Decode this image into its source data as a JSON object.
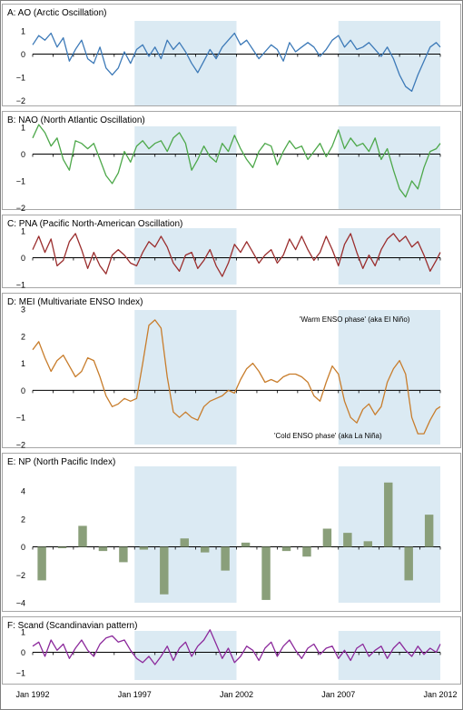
{
  "figure": {
    "x_tick_labels": [
      "Jan 1992",
      "Jan 1997",
      "Jan 2002",
      "Jan 2007",
      "Jan 2012"
    ],
    "shaded_periods": [
      [
        "1997-01",
        "2002-01"
      ],
      [
        "2007-01",
        "2012-01"
      ]
    ],
    "shade_color": "#dbeaf3",
    "frame_color": "#7f7f7f"
  },
  "chart_data": [
    {
      "type": "line",
      "title": "A: AO (Arctic Oscillation)",
      "color": "#3d7ab8",
      "ylim": [
        -2,
        1
      ],
      "yticks": [
        1,
        0,
        -1,
        -2
      ],
      "xlim": [
        "1992-01",
        "2012-01"
      ],
      "series": [
        {
          "x": [
            1992.0,
            1992.3,
            1992.6,
            1992.9,
            1993.2,
            1993.5,
            1993.8,
            1994.1,
            1994.4,
            1994.7,
            1995.0,
            1995.3,
            1995.6,
            1995.9,
            1996.2,
            1996.5,
            1996.8,
            1997.1,
            1997.4,
            1997.7,
            1998.0,
            1998.3,
            1998.6,
            1998.9,
            1999.2,
            1999.5,
            1999.8,
            2000.1,
            2000.4,
            2000.7,
            2001.0,
            2001.3,
            2001.6,
            2001.9,
            2002.2,
            2002.5,
            2002.8,
            2003.1,
            2003.4,
            2003.7,
            2004.0,
            2004.3,
            2004.6,
            2004.9,
            2005.2,
            2005.5,
            2005.8,
            2006.1,
            2006.4,
            2006.7,
            2007.0,
            2007.3,
            2007.6,
            2007.9,
            2008.2,
            2008.5,
            2008.8,
            2009.1,
            2009.4,
            2009.7,
            2010.0,
            2010.3,
            2010.6,
            2010.9,
            2011.2,
            2011.5,
            2011.8,
            2012.0
          ],
          "values": [
            0.4,
            0.8,
            0.6,
            0.9,
            0.3,
            0.7,
            -0.3,
            0.2,
            0.6,
            -0.2,
            -0.4,
            0.3,
            -0.6,
            -0.9,
            -0.6,
            0.1,
            -0.4,
            0.2,
            0.4,
            -0.1,
            0.3,
            -0.2,
            0.6,
            0.2,
            0.5,
            0.1,
            -0.4,
            -0.8,
            -0.3,
            0.2,
            -0.2,
            0.3,
            0.6,
            0.9,
            0.4,
            0.6,
            0.2,
            -0.2,
            0.1,
            0.4,
            0.2,
            -0.3,
            0.5,
            0.1,
            0.3,
            0.5,
            0.3,
            -0.1,
            0.2,
            0.6,
            0.8,
            0.3,
            0.6,
            0.2,
            0.3,
            0.5,
            0.2,
            -0.1,
            0.3,
            -0.2,
            -0.9,
            -1.4,
            -1.6,
            -0.9,
            -0.3,
            0.3,
            0.5,
            0.3
          ]
        }
      ]
    },
    {
      "type": "line",
      "title": "B: NAO (North Atlantic Oscillation)",
      "color": "#4da84a",
      "ylim": [
        -2,
        1
      ],
      "yticks": [
        1,
        0,
        -1,
        -2
      ],
      "xlim": [
        "1992-01",
        "2012-01"
      ],
      "series": [
        {
          "x": [
            1992.0,
            1992.3,
            1992.6,
            1992.9,
            1993.2,
            1993.5,
            1993.8,
            1994.1,
            1994.4,
            1994.7,
            1995.0,
            1995.3,
            1995.6,
            1995.9,
            1996.2,
            1996.5,
            1996.8,
            1997.1,
            1997.4,
            1997.7,
            1998.0,
            1998.3,
            1998.6,
            1998.9,
            1999.2,
            1999.5,
            1999.8,
            2000.1,
            2000.4,
            2000.7,
            2001.0,
            2001.3,
            2001.6,
            2001.9,
            2002.2,
            2002.5,
            2002.8,
            2003.1,
            2003.4,
            2003.7,
            2004.0,
            2004.3,
            2004.6,
            2004.9,
            2005.2,
            2005.5,
            2005.8,
            2006.1,
            2006.4,
            2006.7,
            2007.0,
            2007.3,
            2007.6,
            2007.9,
            2008.2,
            2008.5,
            2008.8,
            2009.1,
            2009.4,
            2009.7,
            2010.0,
            2010.3,
            2010.6,
            2010.9,
            2011.2,
            2011.5,
            2011.8,
            2012.0
          ],
          "values": [
            0.6,
            1.1,
            0.8,
            0.3,
            0.6,
            -0.2,
            -0.6,
            0.5,
            0.4,
            0.2,
            0.4,
            -0.2,
            -0.8,
            -1.1,
            -0.7,
            0.1,
            -0.3,
            0.3,
            0.5,
            0.2,
            0.4,
            0.5,
            0.1,
            0.6,
            0.8,
            0.4,
            -0.6,
            -0.2,
            0.3,
            -0.1,
            -0.3,
            0.4,
            0.1,
            0.7,
            0.2,
            -0.2,
            -0.5,
            0.1,
            0.4,
            0.3,
            -0.4,
            0.1,
            0.5,
            0.2,
            0.3,
            -0.2,
            0.1,
            0.4,
            -0.1,
            0.3,
            0.9,
            0.2,
            0.6,
            0.3,
            0.4,
            0.1,
            0.6,
            -0.2,
            0.2,
            -0.6,
            -1.3,
            -1.6,
            -1.0,
            -1.3,
            -0.5,
            0.1,
            0.2,
            0.4
          ]
        }
      ]
    },
    {
      "type": "line",
      "title": "C: PNA (Pacific North-American Oscillation)",
      "color": "#9b2e2e",
      "ylim": [
        -1,
        1
      ],
      "yticks": [
        1,
        0,
        -1
      ],
      "xlim": [
        "1992-01",
        "2012-01"
      ],
      "series": [
        {
          "x": [
            1992.0,
            1992.3,
            1992.6,
            1992.9,
            1993.2,
            1993.5,
            1993.8,
            1994.1,
            1994.4,
            1994.7,
            1995.0,
            1995.3,
            1995.6,
            1995.9,
            1996.2,
            1996.5,
            1996.8,
            1997.1,
            1997.4,
            1997.7,
            1998.0,
            1998.3,
            1998.6,
            1998.9,
            1999.2,
            1999.5,
            1999.8,
            2000.1,
            2000.4,
            2000.7,
            2001.0,
            2001.3,
            2001.6,
            2001.9,
            2002.2,
            2002.5,
            2002.8,
            2003.1,
            2003.4,
            2003.7,
            2004.0,
            2004.3,
            2004.6,
            2004.9,
            2005.2,
            2005.5,
            2005.8,
            2006.1,
            2006.4,
            2006.7,
            2007.0,
            2007.3,
            2007.6,
            2007.9,
            2008.2,
            2008.5,
            2008.8,
            2009.1,
            2009.4,
            2009.7,
            2010.0,
            2010.3,
            2010.6,
            2010.9,
            2011.2,
            2011.5,
            2011.8,
            2012.0
          ],
          "values": [
            0.3,
            0.8,
            0.2,
            0.7,
            -0.3,
            -0.1,
            0.6,
            0.9,
            0.3,
            -0.4,
            0.2,
            -0.3,
            -0.6,
            0.1,
            0.3,
            0.1,
            -0.2,
            -0.3,
            0.2,
            0.6,
            0.4,
            0.8,
            0.4,
            -0.2,
            -0.5,
            0.1,
            0.2,
            -0.4,
            -0.1,
            0.3,
            -0.3,
            -0.7,
            -0.2,
            0.5,
            0.2,
            0.6,
            0.2,
            -0.2,
            0.1,
            0.3,
            -0.2,
            0.1,
            0.7,
            0.3,
            0.8,
            0.3,
            -0.1,
            0.2,
            0.8,
            0.3,
            -0.3,
            0.5,
            0.9,
            0.2,
            -0.4,
            0.1,
            -0.3,
            0.3,
            0.7,
            0.9,
            0.6,
            0.8,
            0.4,
            0.6,
            0.1,
            -0.5,
            -0.1,
            0.2
          ]
        }
      ]
    },
    {
      "type": "line",
      "title": "D: MEI (Multivariate ENSO Index)",
      "color": "#c87d2c",
      "ylim": [
        -2,
        3
      ],
      "yticks": [
        3,
        2,
        1,
        0,
        -1,
        -2
      ],
      "xlim": [
        "1992-01",
        "2012-01"
      ],
      "annotations": [
        "'Warm ENSO phase' (aka El Niño)",
        "'Cold ENSO phase' (aka La Niña)"
      ],
      "series": [
        {
          "x": [
            1992.0,
            1992.3,
            1992.6,
            1992.9,
            1993.2,
            1993.5,
            1993.8,
            1994.1,
            1994.4,
            1994.7,
            1995.0,
            1995.3,
            1995.6,
            1995.9,
            1996.2,
            1996.5,
            1996.8,
            1997.1,
            1997.4,
            1997.7,
            1998.0,
            1998.3,
            1998.6,
            1998.9,
            1999.2,
            1999.5,
            1999.8,
            2000.1,
            2000.4,
            2000.7,
            2001.0,
            2001.3,
            2001.6,
            2001.9,
            2002.2,
            2002.5,
            2002.8,
            2003.1,
            2003.4,
            2003.7,
            2004.0,
            2004.3,
            2004.6,
            2004.9,
            2005.2,
            2005.5,
            2005.8,
            2006.1,
            2006.4,
            2006.7,
            2007.0,
            2007.3,
            2007.6,
            2007.9,
            2008.2,
            2008.5,
            2008.8,
            2009.1,
            2009.4,
            2009.7,
            2010.0,
            2010.3,
            2010.6,
            2010.9,
            2011.2,
            2011.5,
            2011.8,
            2012.0
          ],
          "values": [
            1.5,
            1.8,
            1.2,
            0.7,
            1.1,
            1.3,
            0.9,
            0.5,
            0.7,
            1.2,
            1.1,
            0.5,
            -0.2,
            -0.6,
            -0.5,
            -0.3,
            -0.4,
            -0.3,
            1.0,
            2.4,
            2.6,
            2.3,
            0.5,
            -0.8,
            -1.0,
            -0.8,
            -1.0,
            -1.1,
            -0.6,
            -0.4,
            -0.3,
            -0.2,
            0.0,
            -0.1,
            0.4,
            0.8,
            1.0,
            0.7,
            0.3,
            0.4,
            0.3,
            0.5,
            0.6,
            0.6,
            0.5,
            0.3,
            -0.2,
            -0.4,
            0.3,
            0.9,
            0.6,
            -0.4,
            -1.0,
            -1.2,
            -0.7,
            -0.5,
            -0.9,
            -0.6,
            0.3,
            0.8,
            1.1,
            0.6,
            -1.0,
            -1.6,
            -1.6,
            -1.1,
            -0.7,
            -0.6
          ]
        }
      ]
    },
    {
      "type": "bar",
      "title": "E: NP (North Pacific Index)",
      "color": "#8a9f7a",
      "ylim": [
        -4,
        6
      ],
      "yticks": [
        4,
        2,
        0,
        -2,
        -4
      ],
      "xlim": [
        "1992-01",
        "2012-01"
      ],
      "categories": [
        1992,
        1993,
        1994,
        1995,
        1996,
        1997,
        1998,
        1999,
        2000,
        2001,
        2002,
        2003,
        2004,
        2005,
        2006,
        2007,
        2008,
        2009,
        2010,
        2011
      ],
      "values": [
        -2.4,
        -0.1,
        1.5,
        -0.3,
        -1.1,
        -0.2,
        -3.4,
        0.6,
        -0.4,
        -1.7,
        0.3,
        -3.8,
        -0.3,
        -0.7,
        1.3,
        1.0,
        0.4,
        4.6,
        -2.4,
        2.3
      ]
    },
    {
      "type": "line",
      "title": "F: Scand (Scandinavian pattern)",
      "color": "#8c2a9c",
      "ylim": [
        -1,
        1
      ],
      "yticks": [
        1,
        0,
        -1
      ],
      "xlim": [
        "1992-01",
        "2012-01"
      ],
      "series": [
        {
          "x": [
            1992.0,
            1992.3,
            1992.6,
            1992.9,
            1993.2,
            1993.5,
            1993.8,
            1994.1,
            1994.4,
            1994.7,
            1995.0,
            1995.3,
            1995.6,
            1995.9,
            1996.2,
            1996.5,
            1996.8,
            1997.1,
            1997.4,
            1997.7,
            1998.0,
            1998.3,
            1998.6,
            1998.9,
            1999.2,
            1999.5,
            1999.8,
            2000.1,
            2000.4,
            2000.7,
            2001.0,
            2001.3,
            2001.6,
            2001.9,
            2002.2,
            2002.5,
            2002.8,
            2003.1,
            2003.4,
            2003.7,
            2004.0,
            2004.3,
            2004.6,
            2004.9,
            2005.2,
            2005.5,
            2005.8,
            2006.1,
            2006.4,
            2006.7,
            2007.0,
            2007.3,
            2007.6,
            2007.9,
            2008.2,
            2008.5,
            2008.8,
            2009.1,
            2009.4,
            2009.7,
            2010.0,
            2010.3,
            2010.6,
            2010.9,
            2011.2,
            2011.5,
            2011.8,
            2012.0
          ],
          "values": [
            0.3,
            0.5,
            -0.2,
            0.6,
            0.1,
            0.4,
            -0.3,
            0.2,
            0.6,
            0.1,
            -0.2,
            0.4,
            0.7,
            0.8,
            0.5,
            0.6,
            0.1,
            -0.3,
            -0.5,
            -0.2,
            -0.6,
            -0.2,
            0.3,
            -0.4,
            0.2,
            0.5,
            -0.2,
            0.3,
            0.6,
            1.1,
            0.4,
            -0.3,
            0.2,
            -0.5,
            -0.2,
            0.3,
            0.1,
            -0.4,
            0.2,
            0.5,
            -0.2,
            0.3,
            0.6,
            0.1,
            -0.3,
            0.2,
            0.4,
            -0.1,
            0.2,
            0.3,
            -0.3,
            0.1,
            -0.4,
            0.2,
            0.4,
            -0.2,
            0.1,
            0.3,
            -0.3,
            0.2,
            0.5,
            0.1,
            -0.2,
            0.3,
            -0.1,
            0.2,
            0.0,
            0.4
          ]
        }
      ]
    }
  ]
}
